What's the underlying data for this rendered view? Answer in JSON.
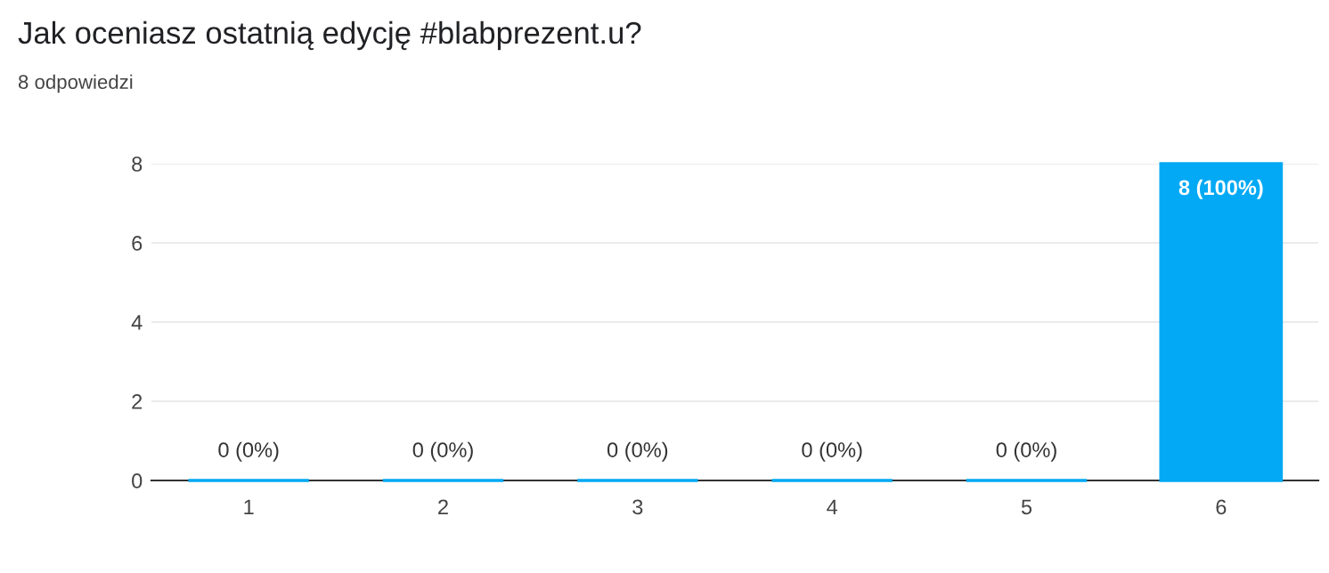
{
  "chart_data": {
    "type": "bar",
    "title": "Jak oceniasz ostatnią edycję #blabprezent.u?",
    "subtitle": "8 odpowiedzi",
    "categories": [
      "1",
      "2",
      "3",
      "4",
      "5",
      "6"
    ],
    "values": [
      0,
      0,
      0,
      0,
      0,
      8
    ],
    "value_labels": [
      "0 (0%)",
      "0 (0%)",
      "0 (0%)",
      "0 (0%)",
      "0 (0%)",
      "8 (100%)"
    ],
    "color": "#03a9f4",
    "ylim": [
      0,
      8
    ],
    "yticks": [
      0,
      2,
      4,
      6,
      8
    ],
    "grid": "y",
    "legend": false
  }
}
